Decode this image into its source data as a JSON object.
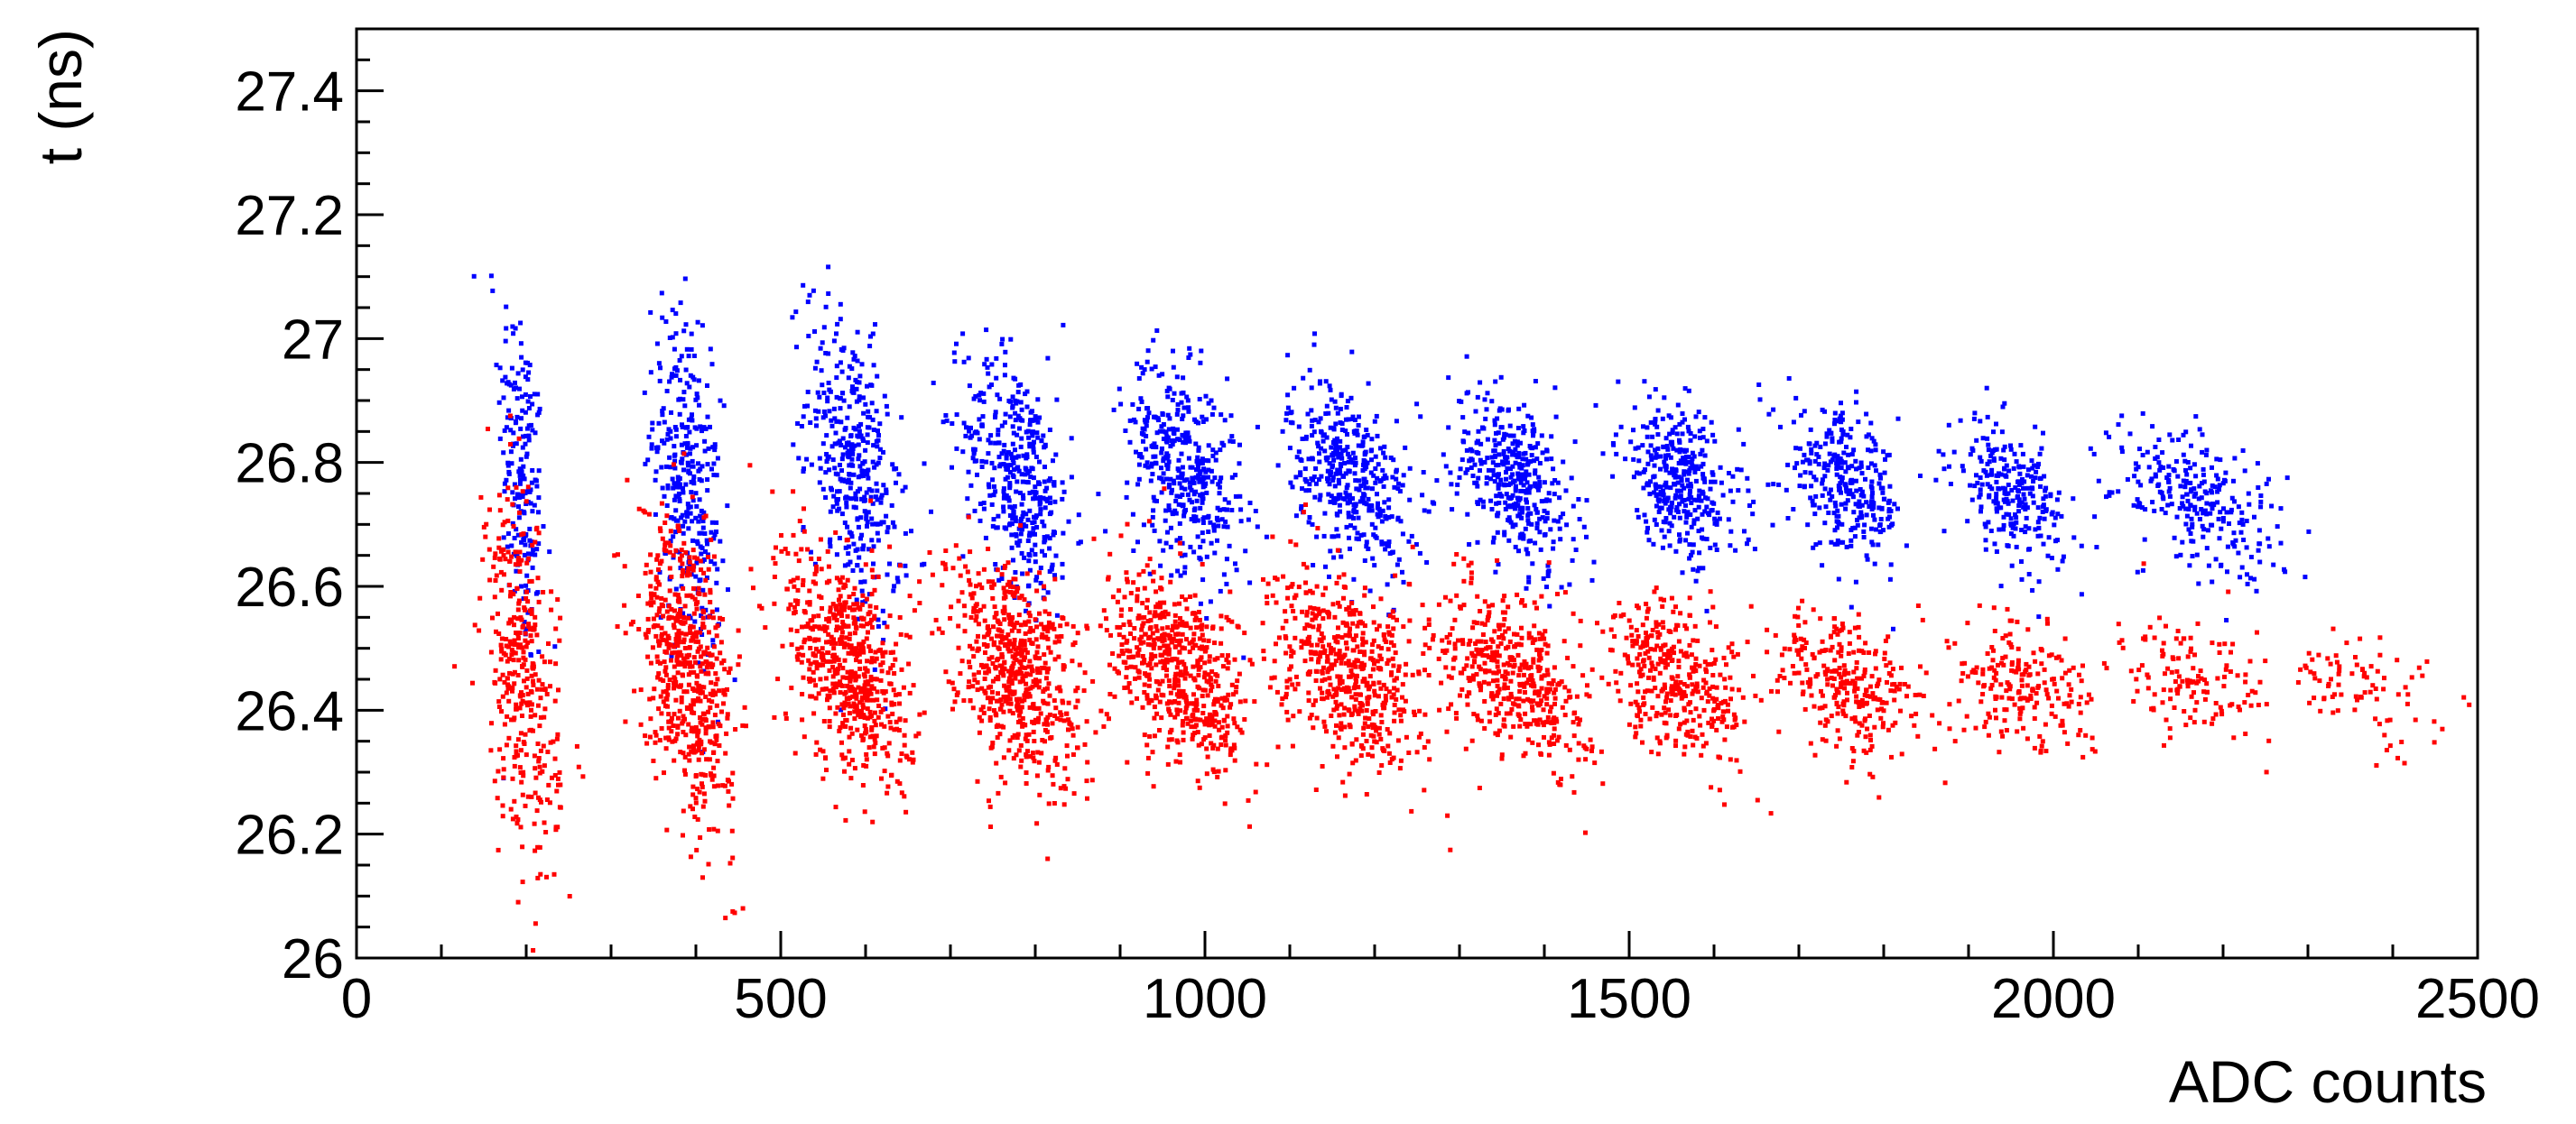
{
  "chart_data": {
    "type": "scatter",
    "title": "",
    "xlabel": "ADC counts",
    "ylabel": "t (ns)",
    "xlim": [
      0,
      2500
    ],
    "ylim": [
      26,
      27.5
    ],
    "x_ticks": [
      "0",
      "500",
      "1000",
      "1500",
      "2000",
      "2500"
    ],
    "y_ticks": [
      "26",
      "26.2",
      "26.4",
      "26.6",
      "26.8",
      "27",
      "27.2",
      "27.4"
    ],
    "grid": false,
    "legend": "none",
    "series": [
      {
        "color": "#0000ff",
        "clusters": [
          {
            "x": 195,
            "y": 26.78,
            "sx": 14,
            "sy": 0.14,
            "n": 190
          },
          {
            "x": 390,
            "y": 26.76,
            "sx": 20,
            "sy": 0.13,
            "n": 320
          },
          {
            "x": 585,
            "y": 26.8,
            "sx": 28,
            "sy": 0.11,
            "n": 380
          },
          {
            "x": 780,
            "y": 26.78,
            "sx": 32,
            "sy": 0.09,
            "n": 400
          },
          {
            "x": 975,
            "y": 26.79,
            "sx": 34,
            "sy": 0.08,
            "n": 400
          },
          {
            "x": 1170,
            "y": 26.78,
            "sx": 36,
            "sy": 0.07,
            "n": 400
          },
          {
            "x": 1365,
            "y": 26.77,
            "sx": 36,
            "sy": 0.065,
            "n": 380
          },
          {
            "x": 1560,
            "y": 26.77,
            "sx": 36,
            "sy": 0.06,
            "n": 350
          },
          {
            "x": 1755,
            "y": 26.76,
            "sx": 34,
            "sy": 0.055,
            "n": 300
          },
          {
            "x": 1950,
            "y": 26.75,
            "sx": 32,
            "sy": 0.05,
            "n": 250
          },
          {
            "x": 2170,
            "y": 26.74,
            "sx": 50,
            "sy": 0.055,
            "n": 260
          }
        ]
      },
      {
        "color": "#ff0000",
        "clusters": [
          {
            "x": 195,
            "y": 26.45,
            "sx": 22,
            "sy": 0.14,
            "n": 360
          },
          {
            "x": 390,
            "y": 26.47,
            "sx": 28,
            "sy": 0.11,
            "n": 560
          },
          {
            "x": 580,
            "y": 26.47,
            "sx": 36,
            "sy": 0.09,
            "n": 600
          },
          {
            "x": 775,
            "y": 26.47,
            "sx": 40,
            "sy": 0.08,
            "n": 600
          },
          {
            "x": 970,
            "y": 26.46,
            "sx": 42,
            "sy": 0.075,
            "n": 560
          },
          {
            "x": 1170,
            "y": 26.46,
            "sx": 44,
            "sy": 0.07,
            "n": 520
          },
          {
            "x": 1365,
            "y": 26.46,
            "sx": 44,
            "sy": 0.065,
            "n": 440
          },
          {
            "x": 1560,
            "y": 26.45,
            "sx": 44,
            "sy": 0.06,
            "n": 360
          },
          {
            "x": 1760,
            "y": 26.44,
            "sx": 44,
            "sy": 0.055,
            "n": 280
          },
          {
            "x": 1960,
            "y": 26.44,
            "sx": 44,
            "sy": 0.05,
            "n": 200
          },
          {
            "x": 2160,
            "y": 26.44,
            "sx": 46,
            "sy": 0.045,
            "n": 130
          },
          {
            "x": 2360,
            "y": 26.43,
            "sx": 60,
            "sy": 0.045,
            "n": 90
          }
        ]
      }
    ]
  }
}
